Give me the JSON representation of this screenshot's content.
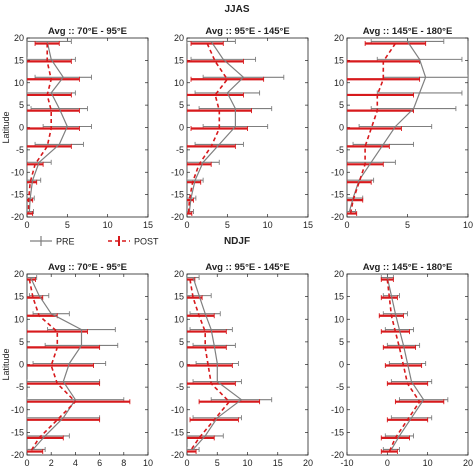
{
  "figure": {
    "group_titles": [
      "JJAS",
      "NDJF"
    ],
    "ylabel": "Latitude",
    "legend": {
      "pre": "PRE",
      "post": "POST"
    }
  },
  "colors": {
    "pre": "#7f7f7f",
    "post": "#d7191c",
    "axis": "#222222"
  },
  "chart_data": [
    {
      "type": "line",
      "group": "JJAS",
      "title": "Avg :: 70°E - 95°E",
      "xlim": [
        0,
        15
      ],
      "ylim": [
        -20,
        20
      ],
      "xticks": [
        0,
        5,
        10,
        15
      ],
      "yticks": [
        -20,
        -15,
        -10,
        -5,
        0,
        5,
        10,
        15,
        20
      ],
      "ylabel": "Latitude",
      "y": [
        19,
        15,
        11,
        7.5,
        4,
        0,
        -4,
        -8,
        -12,
        -16,
        -19
      ],
      "series": [
        {
          "name": "PRE",
          "x": [
            2.5,
            3.0,
            4.5,
            3.0,
            4.0,
            5.0,
            4.0,
            1.5,
            0.7,
            0.4,
            0.3
          ],
          "err": [
            3.0,
            3.0,
            3.5,
            3.0,
            3.5,
            3.0,
            3.0,
            1.5,
            1.0,
            0.5,
            0.5
          ]
        },
        {
          "name": "POST",
          "x": [
            2.5,
            2.5,
            3.0,
            2.5,
            3.0,
            3.0,
            2.5,
            1.0,
            0.4,
            0.2,
            0.2
          ],
          "err": [
            1.5,
            3.0,
            3.5,
            3.0,
            3.5,
            3.5,
            3.0,
            1.0,
            0.8,
            0.5,
            0.5
          ]
        }
      ]
    },
    {
      "type": "line",
      "group": "JJAS",
      "title": "Avg :: 95°E - 145°E",
      "xlim": [
        0,
        15
      ],
      "ylim": [
        -20,
        20
      ],
      "xticks": [
        0,
        5,
        10,
        15
      ],
      "yticks": [
        -20,
        -15,
        -10,
        -5,
        0,
        5,
        10,
        15,
        20
      ],
      "ylabel": "",
      "y": [
        19,
        15,
        11,
        7.5,
        4,
        0,
        -4,
        -8,
        -12,
        -16,
        -19
      ],
      "series": [
        {
          "name": "PRE",
          "x": [
            3.0,
            4.5,
            7.0,
            5.0,
            6.0,
            6.0,
            4.0,
            2.0,
            1.0,
            0.5,
            0.3
          ],
          "err": [
            3.0,
            4.0,
            5.0,
            4.0,
            4.5,
            4.0,
            3.0,
            2.0,
            1.0,
            0.6,
            0.5
          ]
        },
        {
          "name": "POST",
          "x": [
            2.5,
            3.5,
            5.0,
            3.5,
            4.0,
            4.0,
            3.0,
            1.5,
            0.7,
            0.3,
            0.2
          ],
          "err": [
            2.0,
            3.5,
            4.5,
            3.5,
            4.0,
            3.5,
            3.0,
            1.5,
            1.0,
            0.5,
            0.4
          ]
        }
      ]
    },
    {
      "type": "line",
      "group": "JJAS",
      "title": "Avg :: 145°E - 180°E",
      "xlim": [
        0,
        10
      ],
      "ylim": [
        -20,
        20
      ],
      "xticks": [
        0,
        5,
        10
      ],
      "yticks": [
        -20,
        -15,
        -10,
        -5,
        0,
        5,
        10,
        15,
        20
      ],
      "ylabel": "",
      "y": [
        19,
        15,
        11,
        7.5,
        4,
        0,
        -4,
        -8,
        -12,
        -16,
        -19
      ],
      "series": [
        {
          "name": "PRE",
          "x": [
            5.0,
            6.0,
            6.5,
            6.0,
            5.5,
            4.0,
            3.0,
            2.0,
            1.0,
            0.5,
            0.2
          ],
          "err": [
            3.0,
            3.5,
            3.5,
            3.5,
            3.5,
            3.0,
            2.5,
            2.0,
            1.2,
            0.8,
            0.5
          ]
        },
        {
          "name": "POST",
          "x": [
            4.0,
            3.0,
            3.0,
            2.5,
            2.5,
            2.0,
            1.5,
            1.5,
            1.0,
            0.5,
            0.3
          ],
          "err": [
            2.5,
            3.0,
            3.0,
            3.0,
            3.0,
            2.5,
            2.0,
            1.5,
            1.0,
            0.8,
            0.5
          ]
        }
      ]
    },
    {
      "type": "line",
      "group": "NDJF",
      "title": "Avg :: 70°E - 95°E",
      "xlim": [
        0,
        10
      ],
      "ylim": [
        -20,
        20
      ],
      "xticks": [
        0,
        2,
        4,
        6,
        8,
        10
      ],
      "yticks": [
        -20,
        -15,
        -10,
        -5,
        0,
        5,
        10,
        15,
        20
      ],
      "ylabel": "Latitude",
      "y": [
        19,
        15,
        11,
        7.5,
        4,
        0,
        -4,
        -8,
        -12,
        -16,
        -19
      ],
      "series": [
        {
          "name": "PRE",
          "x": [
            0.3,
            1.0,
            2.0,
            4.5,
            4.5,
            3.5,
            3.0,
            4.0,
            3.0,
            1.5,
            0.5
          ],
          "err": [
            0.5,
            0.8,
            1.5,
            2.8,
            3.0,
            3.0,
            3.0,
            4.0,
            3.0,
            2.0,
            1.0
          ]
        },
        {
          "name": "POST",
          "x": [
            0.2,
            0.5,
            1.0,
            2.5,
            2.5,
            2.0,
            2.5,
            4.0,
            2.5,
            1.0,
            0.3
          ],
          "err": [
            0.5,
            0.8,
            1.5,
            2.5,
            3.5,
            3.5,
            3.5,
            4.5,
            3.5,
            2.0,
            1.0
          ]
        }
      ]
    },
    {
      "type": "line",
      "group": "NDJF",
      "title": "Avg :: 95°E - 145°E",
      "xlim": [
        0,
        20
      ],
      "ylim": [
        -20,
        20
      ],
      "xticks": [
        0,
        5,
        10,
        15,
        20
      ],
      "yticks": [
        -20,
        -15,
        -10,
        -5,
        0,
        5,
        10,
        15,
        20
      ],
      "ylabel": "",
      "y": [
        19,
        15,
        11,
        7.5,
        4,
        0,
        -4,
        -8,
        -12,
        -16,
        -19
      ],
      "series": [
        {
          "name": "PRE",
          "x": [
            1.0,
            2.0,
            3.0,
            4.0,
            4.5,
            5.0,
            5.0,
            9.0,
            5.0,
            3.0,
            1.0
          ],
          "err": [
            1.0,
            2.0,
            2.5,
            3.5,
            3.5,
            3.5,
            4.0,
            5.0,
            4.0,
            3.0,
            1.0
          ]
        },
        {
          "name": "POST",
          "x": [
            0.5,
            1.0,
            2.0,
            3.0,
            3.0,
            3.5,
            4.0,
            7.0,
            4.5,
            2.0,
            0.5
          ],
          "err": [
            0.8,
            1.5,
            2.5,
            3.5,
            3.5,
            4.0,
            4.0,
            5.0,
            4.0,
            2.5,
            1.0
          ]
        }
      ]
    },
    {
      "type": "line",
      "group": "NDJF",
      "title": "Avg :: 145°E - 180°E",
      "xlim": [
        -10,
        20
      ],
      "ylim": [
        -20,
        20
      ],
      "xticks": [
        -10,
        0,
        10,
        20
      ],
      "yticks": [
        -20,
        -15,
        -10,
        -5,
        0,
        5,
        10,
        15,
        20
      ],
      "ylabel": "",
      "y": [
        19,
        15,
        11,
        7.5,
        4,
        0,
        -4,
        -8,
        -12,
        -16,
        -19
      ],
      "series": [
        {
          "name": "PRE",
          "x": [
            0.0,
            1.0,
            2.0,
            3.0,
            4.0,
            5.0,
            6.0,
            9.0,
            6.0,
            3.0,
            1.0
          ],
          "err": [
            1.5,
            2.0,
            3.0,
            3.5,
            4.0,
            4.5,
            5.0,
            6.0,
            5.0,
            3.5,
            2.0
          ]
        },
        {
          "name": "POST",
          "x": [
            0.0,
            0.5,
            1.0,
            2.0,
            3.0,
            4.0,
            5.0,
            8.0,
            5.0,
            2.0,
            0.5
          ],
          "err": [
            1.5,
            2.0,
            3.0,
            3.5,
            4.0,
            4.5,
            5.0,
            6.0,
            5.0,
            3.5,
            2.0
          ]
        }
      ]
    }
  ]
}
